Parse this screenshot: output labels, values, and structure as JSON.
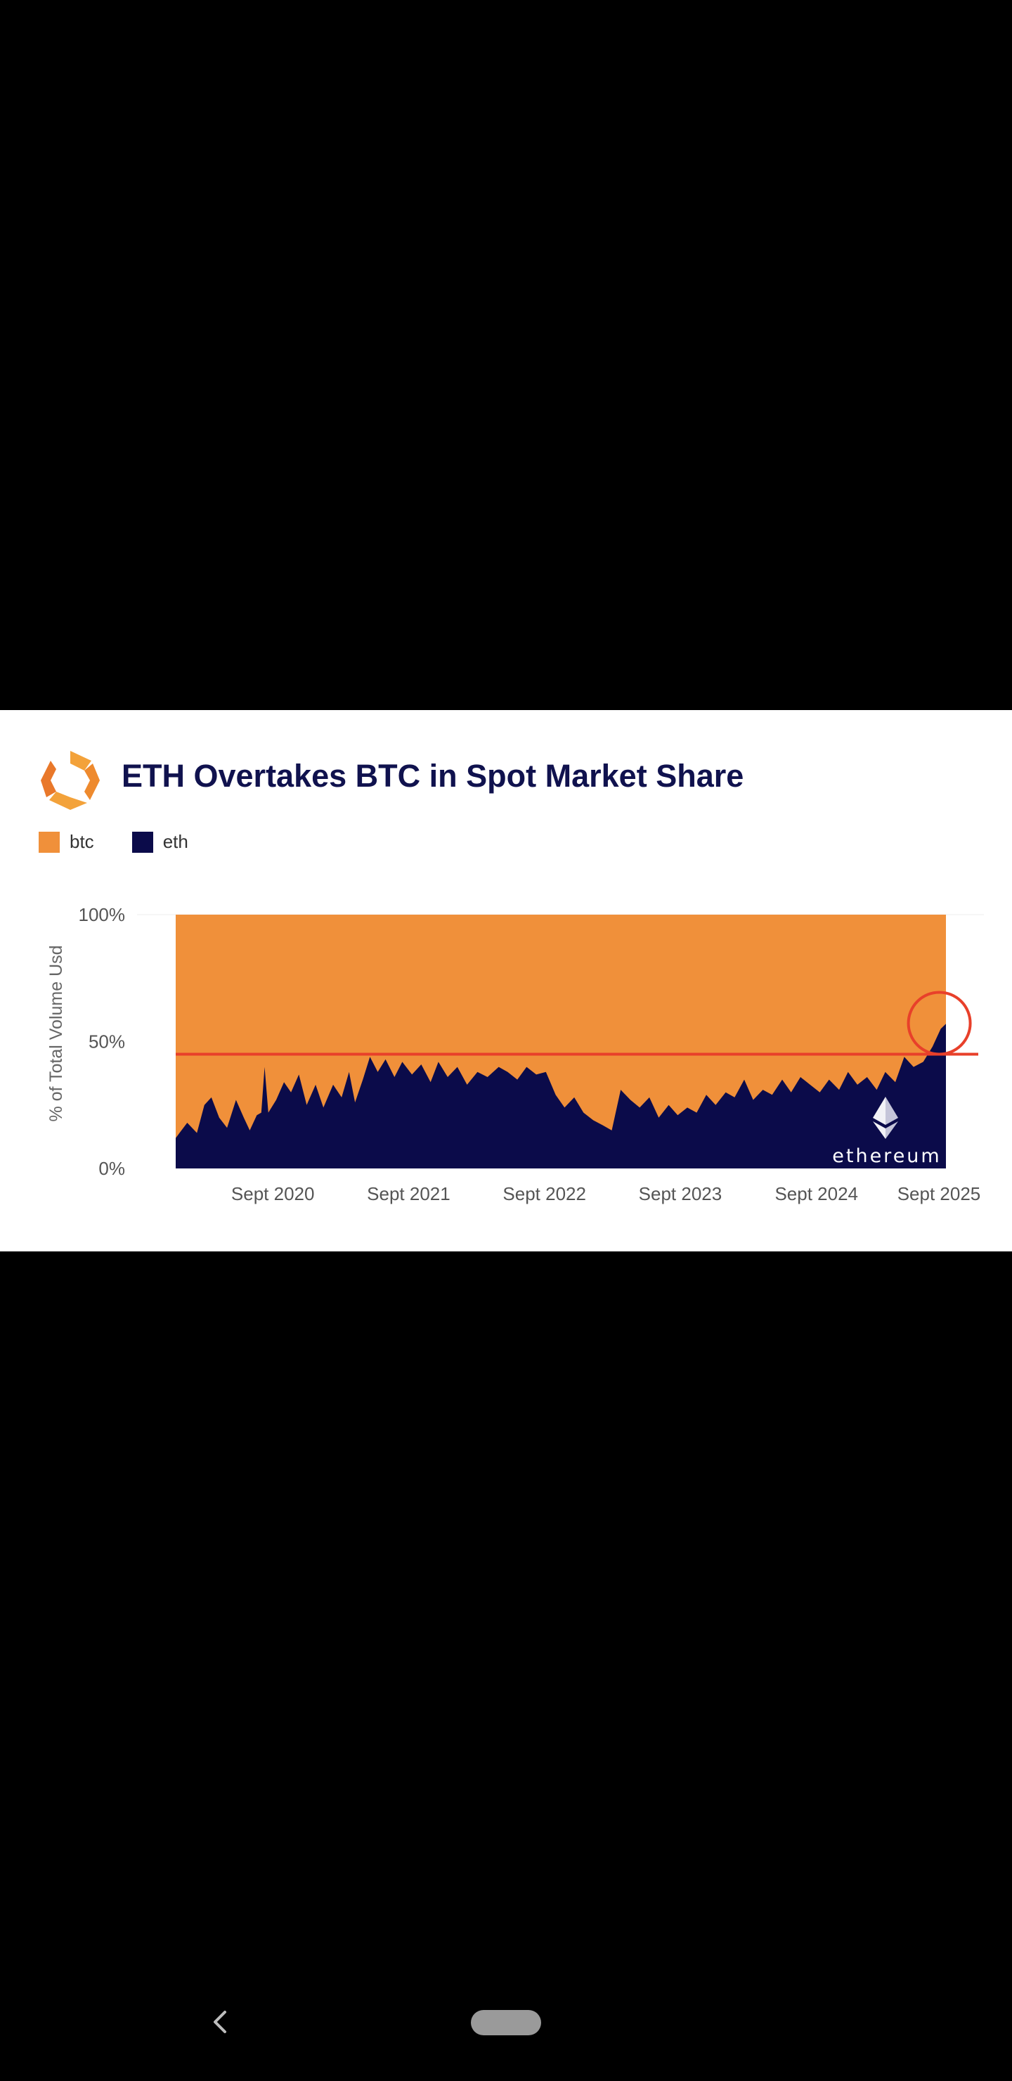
{
  "colors": {
    "btc": "#f0903a",
    "eth": "#0b0b4a",
    "highlight": "#e8402a",
    "title": "#10124e"
  },
  "chart_data": {
    "type": "area",
    "stacked": true,
    "normalized_percent": true,
    "title": "ETH Overtakes BTC in Spot Market Share",
    "ylabel": "% of Total Volume Usd",
    "xlabel": "",
    "ylim": [
      0,
      100
    ],
    "yticks": [
      "100%",
      "50%",
      "0%"
    ],
    "ytick_values": [
      100,
      50,
      0
    ],
    "xticks": [
      "Sept 2020",
      "Sept 2021",
      "Sept 2022",
      "Sept 2023",
      "Sept 2024",
      "Sept 2025"
    ],
    "xtick_dates": [
      "2020-09-01",
      "2021-09-01",
      "2022-09-01",
      "2023-09-01",
      "2024-09-01",
      "2025-09-01"
    ],
    "x_range": [
      "2019-12-15",
      "2025-08-15"
    ],
    "legend": [
      "btc",
      "eth"
    ],
    "legend_position": "top-left",
    "grid": false,
    "reference_line": 45,
    "highlight": {
      "shape": "circle",
      "date": "2025-08-01",
      "value": 55
    },
    "watermark": "ethereum",
    "series": [
      {
        "name": "eth",
        "points": [
          [
            "2019-12-15",
            12
          ],
          [
            "2020-01-15",
            18
          ],
          [
            "2020-02-10",
            14
          ],
          [
            "2020-03-01",
            25
          ],
          [
            "2020-03-20",
            28
          ],
          [
            "2020-04-10",
            20
          ],
          [
            "2020-05-01",
            16
          ],
          [
            "2020-05-25",
            27
          ],
          [
            "2020-06-15",
            20
          ],
          [
            "2020-07-01",
            15
          ],
          [
            "2020-07-20",
            21
          ],
          [
            "2020-08-01",
            22
          ],
          [
            "2020-08-10",
            40
          ],
          [
            "2020-08-20",
            22
          ],
          [
            "2020-09-10",
            27
          ],
          [
            "2020-10-01",
            34
          ],
          [
            "2020-10-20",
            30
          ],
          [
            "2020-11-10",
            37
          ],
          [
            "2020-12-01",
            25
          ],
          [
            "2020-12-25",
            33
          ],
          [
            "2021-01-15",
            24
          ],
          [
            "2021-02-10",
            33
          ],
          [
            "2021-03-05",
            28
          ],
          [
            "2021-03-25",
            38
          ],
          [
            "2021-04-10",
            26
          ],
          [
            "2021-05-01",
            35
          ],
          [
            "2021-05-20",
            44
          ],
          [
            "2021-06-10",
            38
          ],
          [
            "2021-07-01",
            43
          ],
          [
            "2021-07-25",
            36
          ],
          [
            "2021-08-15",
            42
          ],
          [
            "2021-09-10",
            37
          ],
          [
            "2021-10-05",
            41
          ],
          [
            "2021-10-30",
            34
          ],
          [
            "2021-11-20",
            42
          ],
          [
            "2021-12-15",
            36
          ],
          [
            "2022-01-10",
            40
          ],
          [
            "2022-02-05",
            33
          ],
          [
            "2022-03-05",
            38
          ],
          [
            "2022-04-01",
            36
          ],
          [
            "2022-05-01",
            40
          ],
          [
            "2022-05-25",
            38
          ],
          [
            "2022-06-20",
            35
          ],
          [
            "2022-07-15",
            40
          ],
          [
            "2022-08-10",
            37
          ],
          [
            "2022-09-05",
            38
          ],
          [
            "2022-10-01",
            29
          ],
          [
            "2022-10-25",
            24
          ],
          [
            "2022-11-20",
            28
          ],
          [
            "2022-12-15",
            22
          ],
          [
            "2023-01-10",
            19
          ],
          [
            "2023-02-05",
            17
          ],
          [
            "2023-03-01",
            15
          ],
          [
            "2023-03-25",
            31
          ],
          [
            "2023-04-20",
            27
          ],
          [
            "2023-05-15",
            24
          ],
          [
            "2023-06-10",
            28
          ],
          [
            "2023-07-05",
            20
          ],
          [
            "2023-08-01",
            25
          ],
          [
            "2023-08-25",
            21
          ],
          [
            "2023-09-20",
            24
          ],
          [
            "2023-10-15",
            22
          ],
          [
            "2023-11-10",
            29
          ],
          [
            "2023-12-05",
            25
          ],
          [
            "2024-01-01",
            30
          ],
          [
            "2024-01-25",
            28
          ],
          [
            "2024-02-20",
            35
          ],
          [
            "2024-03-15",
            27
          ],
          [
            "2024-04-10",
            31
          ],
          [
            "2024-05-05",
            29
          ],
          [
            "2024-06-01",
            35
          ],
          [
            "2024-06-25",
            30
          ],
          [
            "2024-07-20",
            36
          ],
          [
            "2024-08-15",
            33
          ],
          [
            "2024-09-10",
            30
          ],
          [
            "2024-10-05",
            35
          ],
          [
            "2024-11-01",
            31
          ],
          [
            "2024-11-25",
            38
          ],
          [
            "2024-12-20",
            33
          ],
          [
            "2025-01-15",
            36
          ],
          [
            "2025-02-10",
            31
          ],
          [
            "2025-03-05",
            38
          ],
          [
            "2025-04-01",
            34
          ],
          [
            "2025-04-25",
            44
          ],
          [
            "2025-05-20",
            40
          ],
          [
            "2025-06-15",
            42
          ],
          [
            "2025-07-10",
            48
          ],
          [
            "2025-08-01",
            55
          ],
          [
            "2025-08-15",
            57
          ]
        ]
      },
      {
        "name": "btc",
        "fill_to": 100,
        "note_complement": "btc share is the remainder to 100%"
      }
    ]
  }
}
